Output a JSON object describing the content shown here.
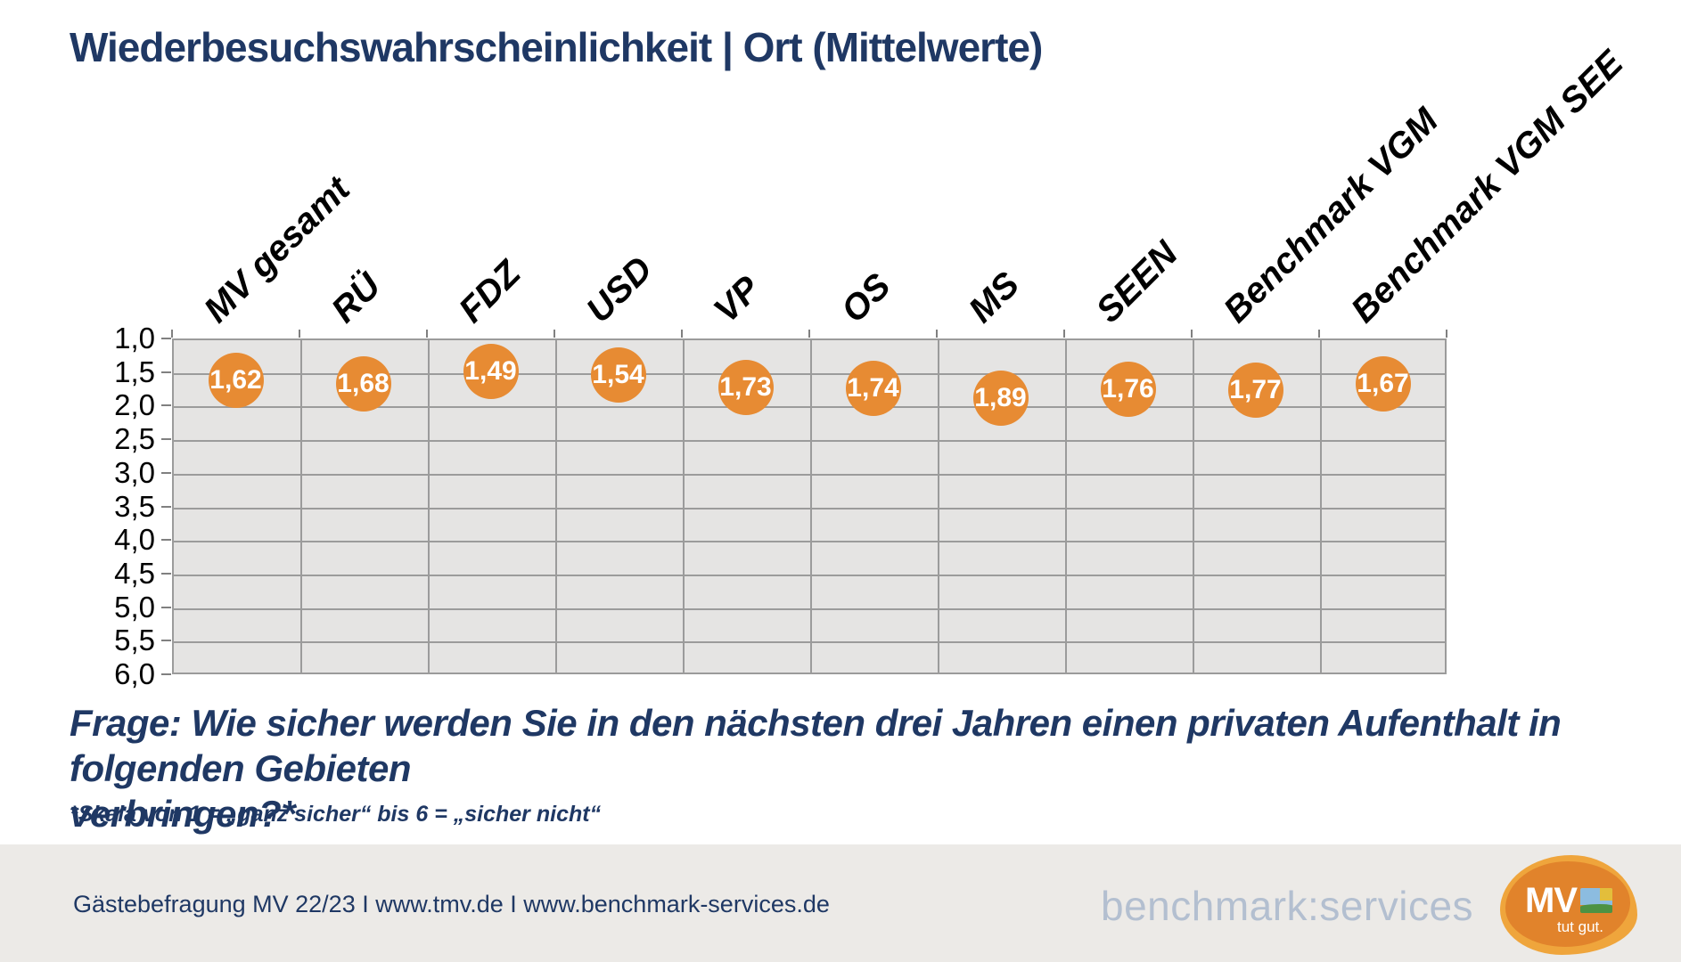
{
  "title": "Wiederbesuchswahrscheinlichkeit | Ort (Mittelwerte)",
  "chart_data": {
    "type": "scatter",
    "categories": [
      "MV gesamt",
      "RÜ",
      "FDZ",
      "USD",
      "VP",
      "OS",
      "MS",
      "SEEN",
      "Benchmark VGM",
      "Benchmark VGM SEE"
    ],
    "values": [
      1.62,
      1.68,
      1.49,
      1.54,
      1.73,
      1.74,
      1.89,
      1.76,
      1.77,
      1.67
    ],
    "value_labels": [
      "1,62",
      "1,68",
      "1,49",
      "1,54",
      "1,73",
      "1,74",
      "1,89",
      "1,76",
      "1,77",
      "1,67"
    ],
    "title": "Wiederbesuchswahrscheinlichkeit | Ort (Mittelwerte)",
    "xlabel": "",
    "ylabel": "",
    "y_axis": {
      "min": 1.0,
      "max": 6.0,
      "tick_step": 0.5,
      "inverted": true,
      "tick_labels": [
        "1,0",
        "1,5",
        "2,0",
        "2,5",
        "3,0",
        "3,5",
        "4,0",
        "4,5",
        "5,0",
        "5,5",
        "6,0"
      ]
    },
    "grid": true,
    "legend": false,
    "marker_color": "#E78B33",
    "marker_label_color": "#FFFFFF"
  },
  "question": {
    "lines": [
      "Frage: Wie sicher werden Sie in den nächsten drei Jahren einen privaten Aufenthalt in folgenden Gebieten",
      "verbringen?*"
    ]
  },
  "footnote": "*Skala von 1 = „ganz sicher“ bis 6 = „sicher nicht“",
  "footer": {
    "source": "Gästebefragung MV 22/23  I  www.tmv.de  I www.benchmark-services.de",
    "brand": "benchmark:services",
    "logo": {
      "text": "MV",
      "tagline": "tut gut."
    }
  },
  "colors": {
    "title_text": "#1F3864",
    "plot_background": "#E5E4E3",
    "gridline": "#9B9B9B",
    "marker": "#E78B33",
    "footer_band": "#ECEAE7",
    "brand_text": "#B3BFD0",
    "logo_outer": "#EFA53C",
    "logo_inner": "#E1832B"
  }
}
